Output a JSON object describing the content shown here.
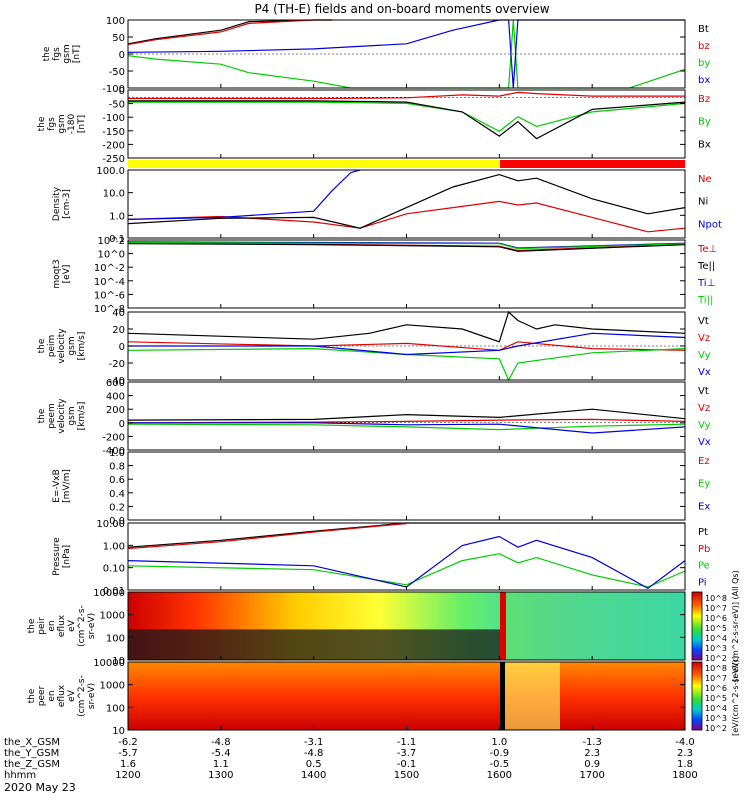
{
  "title": "P4 (TH-E) fields and on-board moments overview",
  "date_label": "2020 May 23",
  "colors": {
    "black": "#000000",
    "red": "#e00000",
    "green": "#00cc00",
    "blue": "#0000dd",
    "yellow": "#ffff00",
    "spec_red": "#ff0000"
  },
  "bottom_axis": {
    "rows": [
      {
        "label": "the_X_GSM",
        "values": [
          "-6.2",
          "-4.8",
          "-3.1",
          "-1.1",
          "1.0",
          "-1.3",
          "-4.0"
        ]
      },
      {
        "label": "the_Y_GSM",
        "values": [
          "-5.7",
          "-5.4",
          "-4.8",
          "-3.7",
          "-0.9",
          "2.3",
          "2.3"
        ]
      },
      {
        "label": "the_Z_GSM",
        "values": [
          "1.6",
          "1.1",
          "0.5",
          "-0.1",
          "-0.5",
          "0.9",
          "1.8"
        ]
      },
      {
        "label": "hhmm",
        "values": [
          "1200",
          "1300",
          "1400",
          "1500",
          "1600",
          "1700",
          "1800"
        ]
      }
    ]
  },
  "chart_data": [
    {
      "type": "line",
      "ylabel": [
        "the",
        "fgs",
        "gsm",
        "[nT]"
      ],
      "ylim": [
        -100,
        100
      ],
      "yticks": [
        "100",
        "50",
        "0",
        "-50",
        "-100"
      ],
      "series": [
        {
          "name": "Bt",
          "color": "black",
          "x": [
            1200,
            1230,
            1300,
            1330,
            1400,
            1420
          ],
          "values": [
            30,
            45,
            70,
            95,
            100,
            100
          ]
        },
        {
          "name": "bz",
          "color": "red",
          "x": [
            1200,
            1230,
            1300,
            1330,
            1400,
            1420
          ],
          "values": [
            28,
            42,
            65,
            90,
            100,
            100
          ]
        },
        {
          "name": "by",
          "color": "green",
          "x": [
            1200,
            1230,
            1300,
            1330,
            1400,
            1440,
            1610,
            1615,
            1620,
            1740,
            1800
          ],
          "values": [
            -5,
            -15,
            -30,
            -55,
            -80,
            -100,
            -100,
            100,
            -100,
            -100,
            -45
          ]
        },
        {
          "name": "bx",
          "color": "blue",
          "x": [
            1200,
            1300,
            1400,
            1500,
            1550,
            1600,
            1610,
            1615,
            1620,
            1800
          ],
          "values": [
            5,
            8,
            15,
            30,
            70,
            100,
            100,
            -100,
            100,
            100
          ]
        }
      ]
    },
    {
      "type": "line",
      "ylabel": [
        "the",
        "fgs",
        "gsm",
        "-180",
        "[nT]"
      ],
      "ylim": [
        -250,
        30
      ],
      "yticks": [
        "0",
        "-50",
        "-100",
        "-150",
        "-200",
        "-250"
      ],
      "series": [
        {
          "name": "Bz",
          "color": "red",
          "x": [
            1200,
            1400,
            1500,
            1560,
            1600,
            1620,
            1640,
            1700,
            1800
          ],
          "values": [
            -5,
            -5,
            -2,
            10,
            5,
            20,
            15,
            5,
            5
          ]
        },
        {
          "name": "By",
          "color": "green",
          "x": [
            1200,
            1400,
            1500,
            1560,
            1600,
            1620,
            1640,
            1700,
            1800
          ],
          "values": [
            -20,
            -20,
            -25,
            -60,
            -140,
            -80,
            -120,
            -60,
            -25
          ]
        },
        {
          "name": "Bx",
          "color": "black",
          "x": [
            1200,
            1400,
            1500,
            1560,
            1600,
            1620,
            1640,
            1700,
            1800
          ],
          "values": [
            -15,
            -15,
            -20,
            -60,
            -160,
            -100,
            -170,
            -50,
            -20
          ]
        }
      ]
    },
    {
      "type": "line",
      "ylabel": [
        "Density",
        "[cm-3]"
      ],
      "scale": "log",
      "ylim": [
        0.1,
        200
      ],
      "yticks": [
        "100.0",
        "10.0",
        "1.0",
        "0.1"
      ],
      "series": [
        {
          "name": "Ne",
          "color": "red",
          "x": [
            1200,
            1300,
            1400,
            1450,
            1500,
            1550,
            1600,
            1620,
            1640,
            1700,
            1760,
            1800
          ],
          "values": [
            0.8,
            1.1,
            0.6,
            0.3,
            1.5,
            3,
            6,
            4,
            5,
            1,
            0.2,
            0.3
          ]
        },
        {
          "name": "Ni",
          "color": "black",
          "x": [
            1200,
            1300,
            1400,
            1450,
            1500,
            1550,
            1600,
            1620,
            1640,
            1700,
            1760,
            1800
          ],
          "values": [
            0.5,
            0.9,
            1.0,
            0.3,
            3,
            30,
            120,
            60,
            80,
            8,
            1.5,
            3
          ]
        },
        {
          "name": "Npot",
          "color": "blue",
          "x": [
            1200,
            1300,
            1400,
            1420,
            1440,
            1450
          ],
          "values": [
            0.8,
            1.0,
            2,
            20,
            150,
            200
          ]
        }
      ]
    },
    {
      "type": "line",
      "ylabel": [
        "moqt3",
        "[eV]"
      ],
      "scale": "log",
      "ylim": [
        1e-08,
        1000
      ],
      "yticks": [
        "10^2",
        "10^0",
        "10^-2",
        "10^-4",
        "10^-6",
        "10^-8"
      ],
      "series": [
        {
          "name": "Te⊥",
          "color": "red",
          "x": [
            1200,
            1400,
            1600,
            1620,
            1800
          ],
          "values": [
            300,
            200,
            100,
            20,
            200
          ]
        },
        {
          "name": "Te||",
          "color": "black",
          "x": [
            1200,
            1400,
            1600,
            1620,
            1800
          ],
          "values": [
            250,
            180,
            80,
            15,
            180
          ]
        },
        {
          "name": "Ti⊥",
          "color": "blue",
          "x": [
            1200,
            1400,
            1600,
            1620,
            1800
          ],
          "values": [
            500,
            400,
            300,
            50,
            300
          ]
        },
        {
          "name": "Ti||",
          "color": "green",
          "x": [
            1200,
            1400,
            1600,
            1620,
            1800
          ],
          "values": [
            400,
            300,
            250,
            40,
            250
          ]
        }
      ]
    },
    {
      "type": "line",
      "ylabel": [
        "the",
        "peim",
        "velocity",
        "gsm",
        "[km/s]"
      ],
      "ylim": [
        -40,
        40
      ],
      "yticks": [
        "40",
        "20",
        "0",
        "-20",
        "-40"
      ],
      "series": [
        {
          "name": "Vt",
          "color": "black",
          "x": [
            1200,
            1400,
            1460,
            1500,
            1560,
            1600,
            1610,
            1620,
            1640,
            1660,
            1700,
            1800
          ],
          "values": [
            15,
            8,
            15,
            25,
            20,
            5,
            40,
            30,
            20,
            25,
            20,
            15
          ]
        },
        {
          "name": "Vz",
          "color": "red",
          "x": [
            1200,
            1400,
            1500,
            1600,
            1620,
            1700,
            1800
          ],
          "values": [
            5,
            0,
            3,
            -5,
            5,
            -3,
            -5
          ]
        },
        {
          "name": "Vy",
          "color": "green",
          "x": [
            1200,
            1400,
            1500,
            1600,
            1610,
            1620,
            1700,
            1800
          ],
          "values": [
            -5,
            -3,
            -10,
            -15,
            -40,
            -20,
            -8,
            -3
          ]
        },
        {
          "name": "Vx",
          "color": "blue",
          "x": [
            1200,
            1400,
            1500,
            1600,
            1620,
            1700,
            1800
          ],
          "values": [
            0,
            0,
            -10,
            -5,
            0,
            15,
            10
          ]
        }
      ]
    },
    {
      "type": "line",
      "ylabel": [
        "the",
        "peem",
        "velocity",
        "gsm",
        "[km/s]"
      ],
      "ylim": [
        -400,
        600
      ],
      "yticks": [
        "600",
        "400",
        "200",
        "0",
        "-200",
        "-400"
      ],
      "series": [
        {
          "name": "Vt",
          "color": "black",
          "x": [
            1200,
            1400,
            1500,
            1600,
            1700,
            1800
          ],
          "values": [
            40,
            50,
            120,
            80,
            200,
            60
          ]
        },
        {
          "name": "Vz",
          "color": "red",
          "x": [
            1200,
            1400,
            1500,
            1600,
            1700,
            1800
          ],
          "values": [
            0,
            10,
            20,
            40,
            50,
            20
          ]
        },
        {
          "name": "Vy",
          "color": "green",
          "x": [
            1200,
            1400,
            1500,
            1600,
            1700,
            1800
          ],
          "values": [
            -20,
            -30,
            -60,
            -100,
            -50,
            -20
          ]
        },
        {
          "name": "Vx",
          "color": "blue",
          "x": [
            1200,
            1400,
            1500,
            1600,
            1700,
            1800
          ],
          "values": [
            0,
            0,
            -30,
            -20,
            -150,
            -60
          ]
        }
      ]
    },
    {
      "type": "line",
      "ylabel": [
        "E=-VxB",
        "[mV/m]"
      ],
      "ylim": [
        0,
        1
      ],
      "yticks": [
        "1.0",
        "0.8",
        "0.6",
        "0.4",
        "0.2",
        "0.0"
      ],
      "series": [
        {
          "name": "Ez",
          "color": "red",
          "x": [],
          "values": []
        },
        {
          "name": "Ey",
          "color": "green",
          "x": [],
          "values": []
        },
        {
          "name": "Ex",
          "color": "blue",
          "x": [],
          "values": []
        }
      ]
    },
    {
      "type": "line",
      "ylabel": [
        "Pressure",
        "[nPa]"
      ],
      "scale": "log",
      "ylim": [
        0.004,
        30
      ],
      "yticks": [
        "10.00",
        "1.00",
        "0.10",
        "0.01"
      ],
      "series": [
        {
          "name": "Pt",
          "color": "black",
          "x": [
            1200,
            1300,
            1400,
            1500,
            1800
          ],
          "values": [
            1.2,
            3,
            10,
            30,
            30
          ]
        },
        {
          "name": "Pb",
          "color": "red",
          "x": [
            1200,
            1300,
            1400,
            1500
          ],
          "values": [
            1.0,
            2.5,
            9,
            28
          ]
        },
        {
          "name": "Pe",
          "color": "green",
          "x": [
            1200,
            1400,
            1500,
            1560,
            1600,
            1620,
            1640,
            1700,
            1760,
            1800
          ],
          "values": [
            0.1,
            0.06,
            0.008,
            0.2,
            0.5,
            0.15,
            0.3,
            0.03,
            0.006,
            0.05
          ]
        },
        {
          "name": "Pi",
          "color": "blue",
          "x": [
            1200,
            1400,
            1500,
            1560,
            1600,
            1620,
            1640,
            1700,
            1760,
            1800
          ],
          "values": [
            0.2,
            0.1,
            0.006,
            1.5,
            5,
            1.2,
            3,
            0.3,
            0.005,
            0.2
          ]
        }
      ]
    },
    {
      "type": "heatmap",
      "ylabel": [
        "the",
        "peir",
        "en",
        "eflux",
        "eV",
        "(cm^2-s-",
        "sr-eV)"
      ],
      "yticks": [
        "10000",
        "1000",
        "100",
        "10"
      ],
      "colorbar_ticks": [
        "10^8",
        "10^7",
        "10^6",
        "10^5",
        "10^4",
        "10^3",
        "10^2"
      ],
      "colorbar_label": "[eV/(cm^2-s-sr-eV)] (All Qs)"
    },
    {
      "type": "heatmap",
      "ylabel": [
        "the",
        "peer",
        "en",
        "eflux",
        "eV",
        "(cm^2-s-",
        "sr-eV)"
      ],
      "yticks": [
        "10000",
        "1000",
        "100",
        "10"
      ],
      "colorbar_ticks": [
        "10^8",
        "10^7",
        "10^6",
        "10^5",
        "10^4",
        "10^3",
        "10^2"
      ],
      "colorbar_label": "[eV/(cm^2-s-sr-eV)]"
    }
  ]
}
